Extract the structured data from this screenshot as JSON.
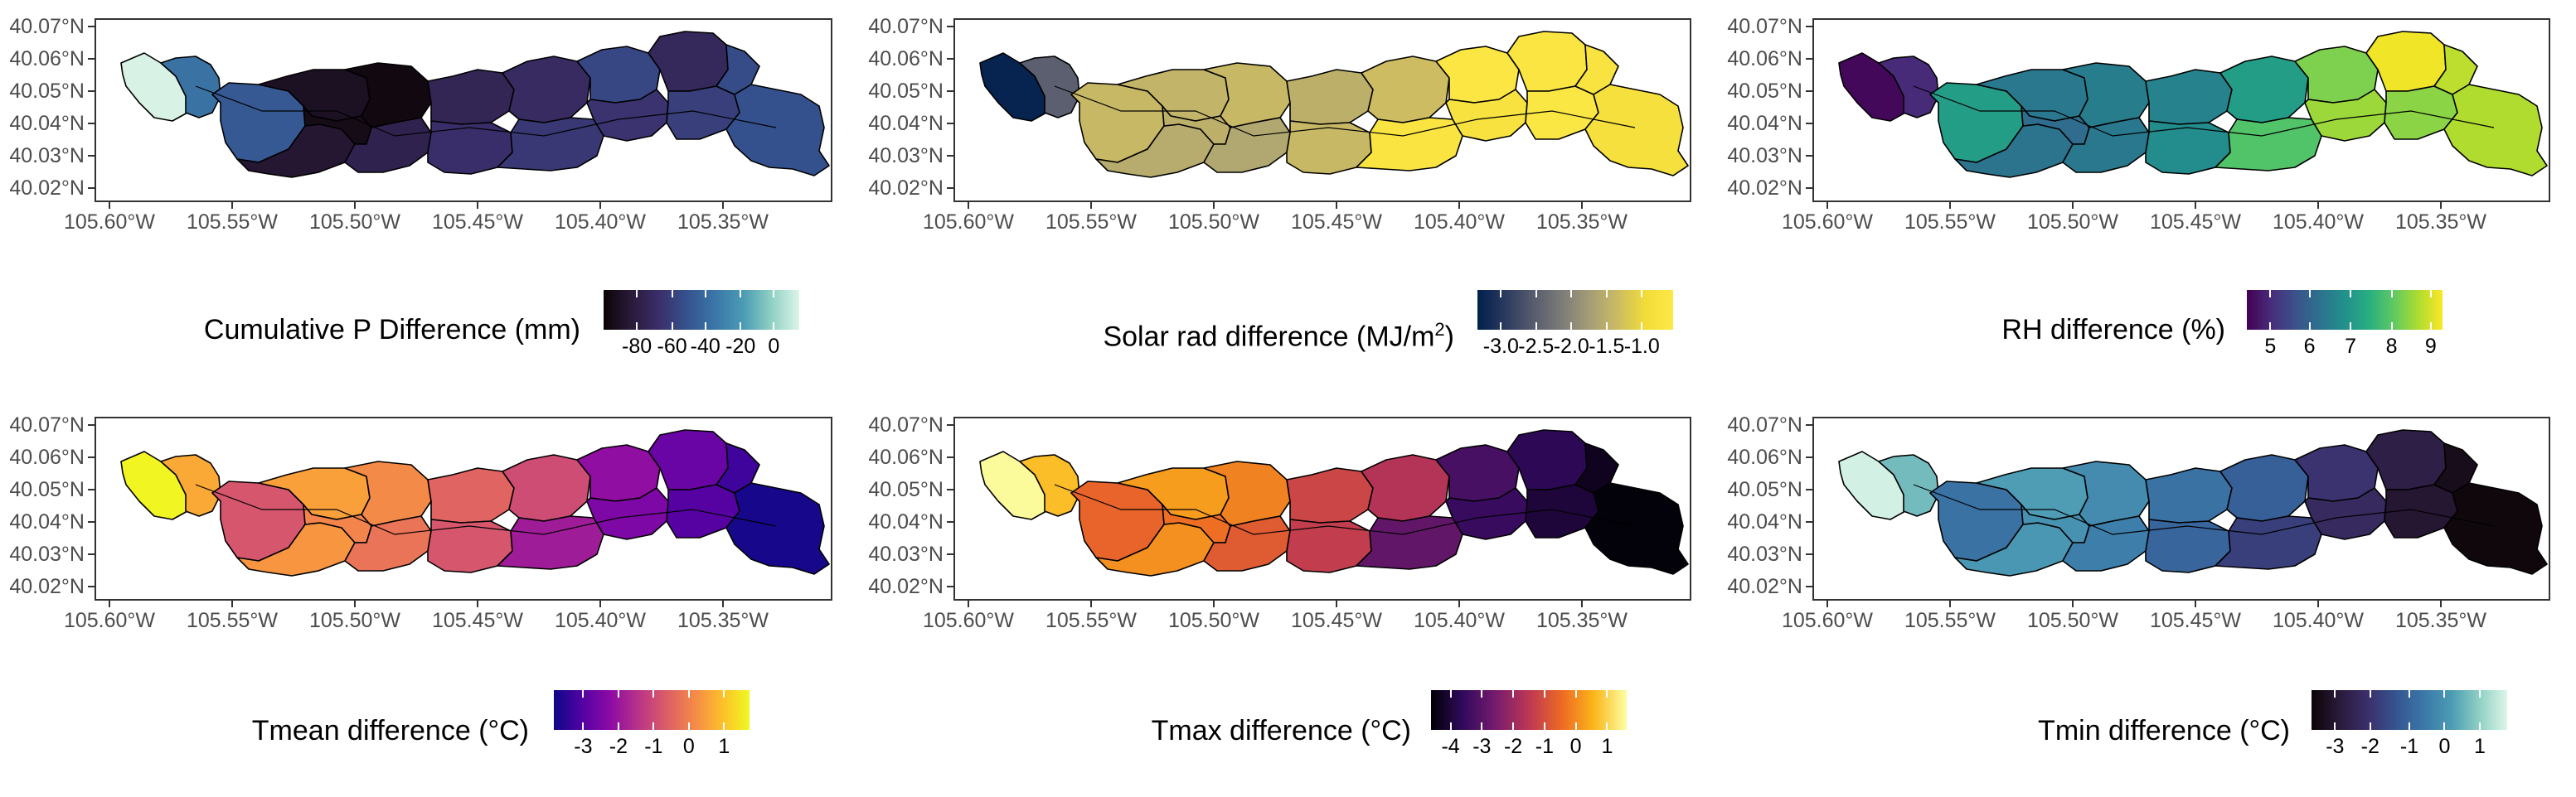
{
  "axes": {
    "y_labels": [
      "40.07°N",
      "40.06°N",
      "40.05°N",
      "40.04°N",
      "40.03°N",
      "40.02°N"
    ],
    "x_labels": [
      "105.60°W",
      "105.55°W",
      "105.50°W",
      "105.45°W",
      "105.40°W",
      "105.35°W"
    ]
  },
  "panels": [
    {
      "id": "cumulative-p",
      "legend": {
        "title": "Cumulative P Difference (mm)",
        "title_sup": "",
        "title_after": "",
        "labels": [
          "-80",
          "-60",
          "-40",
          "-20",
          "0"
        ]
      },
      "palette": [
        "#0b0405",
        "#2a1a3a",
        "#3a2f6b",
        "#35538f",
        "#3b77a8",
        "#4b9bb4",
        "#8fd0c4",
        "#ddf5e8"
      ],
      "values": [
        0.99,
        0.55,
        0.45,
        0.08,
        0.12,
        0.05,
        0.03,
        0.2,
        0.22,
        0.28,
        0.26,
        0.32,
        0.38,
        0.3,
        0.24,
        0.35,
        0.4,
        0.42
      ]
    },
    {
      "id": "solar-rad",
      "legend": {
        "title": "Solar rad difference (MJ/m",
        "title_sup": "2",
        "title_after": ")",
        "labels": [
          "-3.0",
          "-2.5",
          "-2.0",
          "-1.5",
          "-1.0"
        ]
      },
      "palette": [
        "#00204c",
        "#2c3a5f",
        "#575c6e",
        "#7c7b78",
        "#a49c76",
        "#cbbb63",
        "#f2dc3a",
        "#fde945"
      ],
      "values": [
        0.02,
        0.3,
        0.7,
        0.68,
        0.64,
        0.66,
        0.7,
        0.62,
        0.66,
        0.7,
        0.72,
        0.95,
        0.97,
        0.92,
        0.96,
        0.98,
        0.93,
        0.9
      ]
    },
    {
      "id": "rh",
      "legend": {
        "title": "RH difference (%)",
        "title_sup": "",
        "title_after": "",
        "labels": [
          "5",
          "6",
          "7",
          "8",
          "9"
        ]
      },
      "palette": [
        "#440154",
        "#472d7b",
        "#3b528b",
        "#2c728e",
        "#21918c",
        "#28ae80",
        "#5ec962",
        "#addc30",
        "#fde725"
      ],
      "values": [
        0.02,
        0.12,
        0.55,
        0.4,
        0.38,
        0.35,
        0.42,
        0.4,
        0.44,
        0.48,
        0.55,
        0.72,
        0.8,
        0.85,
        0.98,
        0.82,
        0.9,
        0.88
      ]
    },
    {
      "id": "tmean",
      "legend": {
        "title": "Tmean difference (°C)",
        "title_sup": "",
        "title_after": "",
        "labels": [
          "-3",
          "-2",
          "-1",
          "0",
          "1"
        ]
      },
      "palette": [
        "#0d0887",
        "#5302a3",
        "#8b0aa5",
        "#b83289",
        "#db5c68",
        "#f48849",
        "#febd2a",
        "#f0f921"
      ],
      "values": [
        0.99,
        0.8,
        0.55,
        0.78,
        0.75,
        0.7,
        0.72,
        0.65,
        0.6,
        0.55,
        0.52,
        0.35,
        0.3,
        0.25,
        0.2,
        0.15,
        0.1,
        0.02
      ]
    },
    {
      "id": "tmax",
      "legend": {
        "title": "Tmax difference (°C)",
        "title_sup": "",
        "title_after": "",
        "labels": [
          "-4",
          "-3",
          "-2",
          "-1",
          "0",
          "1"
        ]
      },
      "palette": [
        "#000004",
        "#320a5e",
        "#781c6d",
        "#bc3754",
        "#ed6925",
        "#fbb61a",
        "#fcffa4"
      ],
      "values": [
        0.99,
        0.85,
        0.65,
        0.78,
        0.75,
        0.68,
        0.72,
        0.62,
        0.55,
        0.52,
        0.48,
        0.28,
        0.22,
        0.18,
        0.15,
        0.1,
        0.05,
        0.01
      ]
    },
    {
      "id": "tmin",
      "legend": {
        "title": "Tmin difference (°C)",
        "title_sup": "",
        "title_after": "",
        "labels": [
          "-3",
          "-2",
          "-1",
          "0",
          "1"
        ]
      },
      "palette": [
        "#0b0405",
        "#2a1a3a",
        "#3a2f6b",
        "#35538f",
        "#3b77a8",
        "#4b9bb4",
        "#8fd0c4",
        "#ddf5e8"
      ],
      "values": [
        0.98,
        0.8,
        0.55,
        0.72,
        0.7,
        0.68,
        0.65,
        0.6,
        0.55,
        0.5,
        0.48,
        0.35,
        0.3,
        0.25,
        0.18,
        0.12,
        0.06,
        0.02
      ]
    }
  ]
}
